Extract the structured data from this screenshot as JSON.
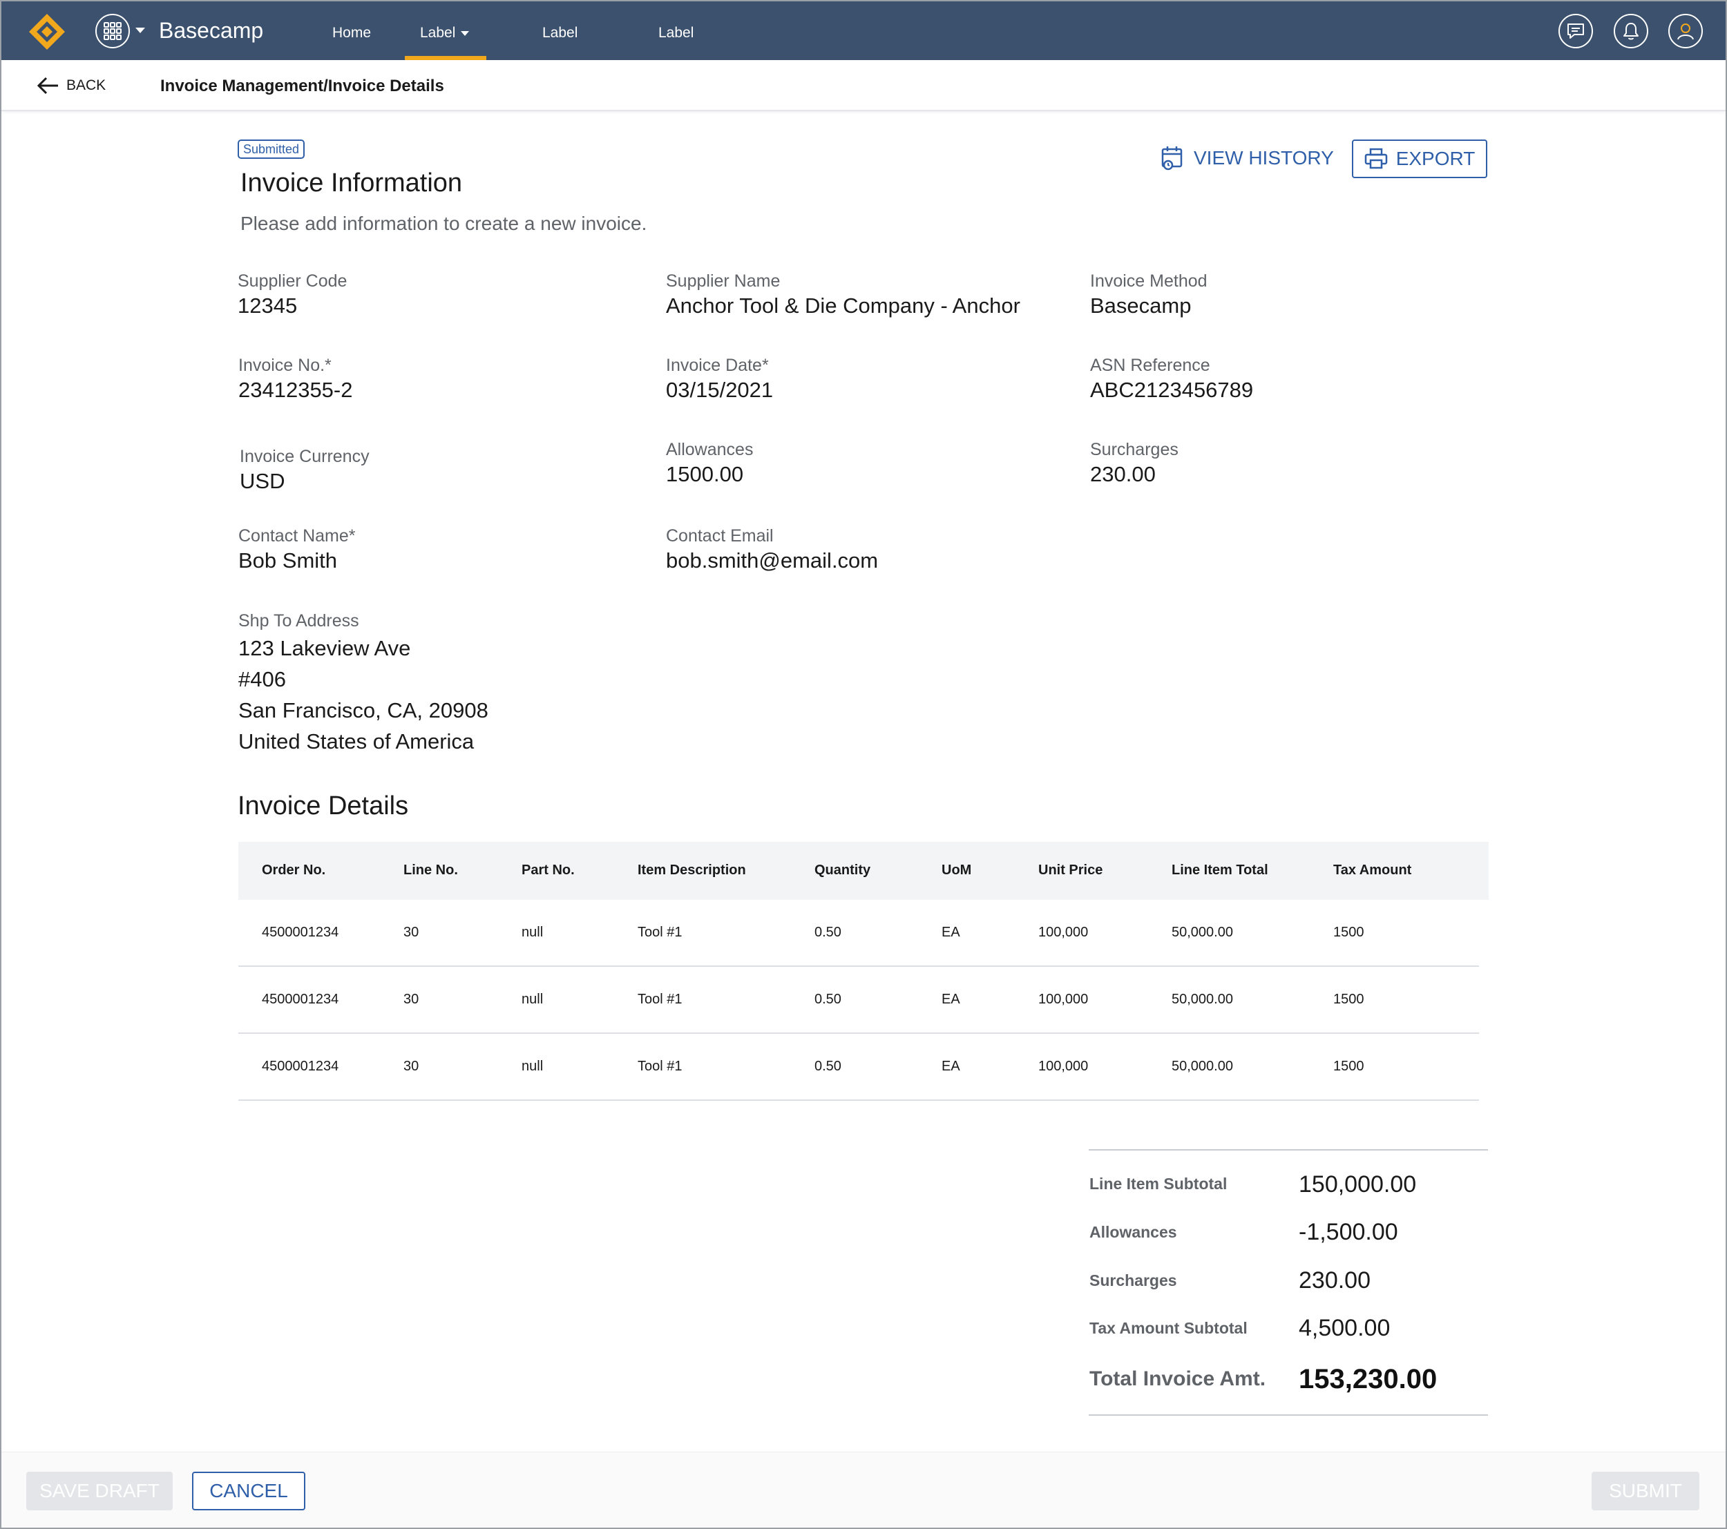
{
  "app": {
    "brand": "Basecamp",
    "accent_color": "#f2a81d",
    "nav_bg_color": "#3b516d",
    "link_color": "#2f5fa8"
  },
  "nav": {
    "items": [
      {
        "label": "Home"
      },
      {
        "label": "Label"
      },
      {
        "label": "Label"
      },
      {
        "label": "Label"
      }
    ],
    "icons": [
      "messages-icon",
      "bell-icon",
      "user-icon"
    ]
  },
  "subheader": {
    "back_label": "BACK",
    "breadcrumb": "Invoice Management/Invoice Details"
  },
  "invoice": {
    "status_badge": "Submitted",
    "title": "Invoice Information",
    "subtitle": "Please add information to create a new invoice.",
    "view_history_label": "VIEW HISTORY",
    "export_label": "EXPORT",
    "fields": {
      "supplier_code": {
        "label": "Supplier Code",
        "value": "12345"
      },
      "supplier_name": {
        "label": "Supplier Name",
        "value": "Anchor Tool & Die Company - Anchor"
      },
      "invoice_method": {
        "label": "Invoice Method",
        "value": "Basecamp"
      },
      "invoice_no": {
        "label": "Invoice No.*",
        "value": "23412355-2"
      },
      "invoice_date": {
        "label": "Invoice Date*",
        "value": "03/15/2021"
      },
      "asn_reference": {
        "label": "ASN Reference",
        "value": "ABC2123456789"
      },
      "invoice_currency": {
        "label": "Invoice Currency",
        "value": "USD"
      },
      "allowances": {
        "label": "Allowances",
        "value": "1500.00"
      },
      "surcharges": {
        "label": "Surcharges",
        "value": "230.00"
      },
      "contact_name": {
        "label": "Contact Name*",
        "value": "Bob Smith"
      },
      "contact_email": {
        "label": "Contact Email",
        "value": "bob.smith@email.com"
      },
      "ship_to": {
        "label": "Shp To Address",
        "lines": [
          "123 Lakeview Ave",
          "#406",
          "San Francisco, CA, 20908",
          "United States of America"
        ]
      }
    }
  },
  "details": {
    "title": "Invoice Details",
    "columns": [
      "Order No.",
      "Line No.",
      "Part No.",
      "Item Description",
      "Quantity",
      "UoM",
      "Unit Price",
      "Line Item Total",
      "Tax Amount"
    ],
    "rows": [
      [
        "4500001234",
        "30",
        "null",
        "Tool #1",
        "0.50",
        "EA",
        "100,000",
        "50,000.00",
        "1500"
      ],
      [
        "4500001234",
        "30",
        "null",
        "Tool #1",
        "0.50",
        "EA",
        "100,000",
        "50,000.00",
        "1500"
      ],
      [
        "4500001234",
        "30",
        "null",
        "Tool #1",
        "0.50",
        "EA",
        "100,000",
        "50,000.00",
        "1500"
      ]
    ]
  },
  "summary": {
    "line_item_subtotal": {
      "label": "Line Item Subtotal",
      "value": "150,000.00"
    },
    "allowances": {
      "label": "Allowances",
      "value": "-1,500.00"
    },
    "surcharges": {
      "label": "Surcharges",
      "value": "230.00"
    },
    "tax_amount_subtotal": {
      "label": "Tax Amount Subtotal",
      "value": "4,500.00"
    },
    "total": {
      "label": "Total Invoice Amt.",
      "value": "153,230.00"
    }
  },
  "footer": {
    "save_draft_label": "SAVE DRAFT",
    "cancel_label": "CANCEL",
    "submit_label": "SUBMIT"
  }
}
